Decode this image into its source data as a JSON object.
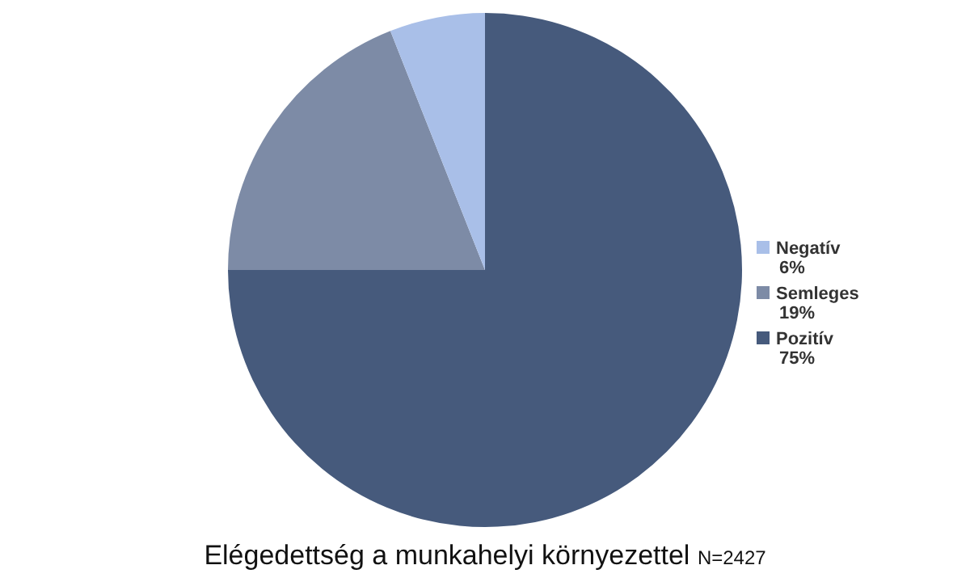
{
  "chart_data": {
    "type": "pie",
    "title": "Elégedettség a munkahelyi környezettel",
    "subtitle": "N=2427",
    "categories": [
      "Negatív",
      "Semleges",
      "Pozitív"
    ],
    "values": [
      6,
      19,
      75
    ],
    "colors": [
      "#a9bfe8",
      "#7d8ba6",
      "#465a7c"
    ],
    "value_labels": [
      "6%",
      "19%",
      "75%"
    ],
    "legend": "right"
  }
}
